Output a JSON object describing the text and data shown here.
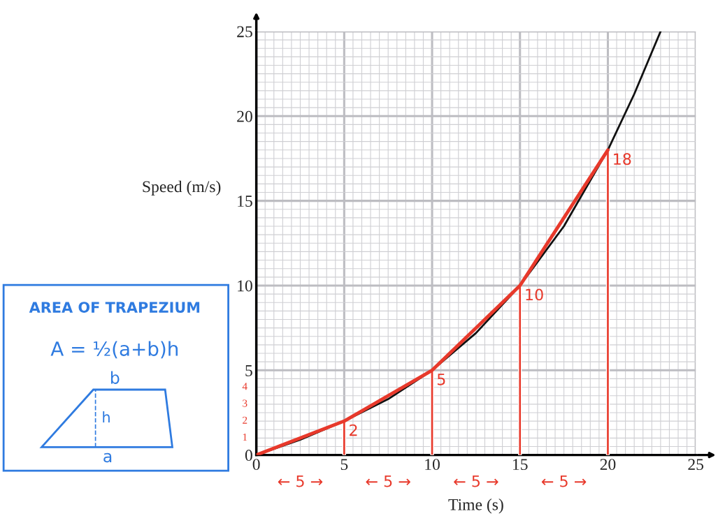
{
  "chart_data": {
    "type": "line",
    "xlabel": "Time (s)",
    "ylabel": "Speed (m/s)",
    "xlim": [
      0,
      25
    ],
    "ylim": [
      0,
      25
    ],
    "xticks": [
      0,
      5,
      10,
      15,
      20,
      25
    ],
    "yticks": [
      0,
      5,
      10,
      15,
      20,
      25
    ],
    "grid": true,
    "series": [
      {
        "color": "#111111",
        "x": [
          0,
          2.5,
          5,
          7.5,
          10,
          12.5,
          15,
          17.5,
          20,
          21.5,
          23
        ],
        "values": [
          0,
          0.9,
          2,
          3.3,
          5,
          7.2,
          10,
          13.5,
          18,
          21.3,
          25
        ]
      },
      {
        "color": "#e8392b",
        "x": [
          0,
          5,
          10,
          15,
          20
        ],
        "values": [
          0,
          2,
          5,
          10,
          18
        ]
      },
      {
        "type": "bar",
        "color": "#e8392b",
        "x": [
          5,
          10,
          15,
          20
        ],
        "values": [
          2,
          5,
          10,
          18
        ],
        "value_labels": [
          "2",
          "5",
          "10",
          "18"
        ]
      }
    ],
    "annotations": [
      "1",
      "2",
      "3",
      "4",
      "← 5 →",
      "← 5 →",
      "← 5 →",
      "← 5 →",
      "AREA OF TRAPEZIUM",
      "A = ½(a+b)h",
      "b",
      "h",
      "a"
    ]
  }
}
